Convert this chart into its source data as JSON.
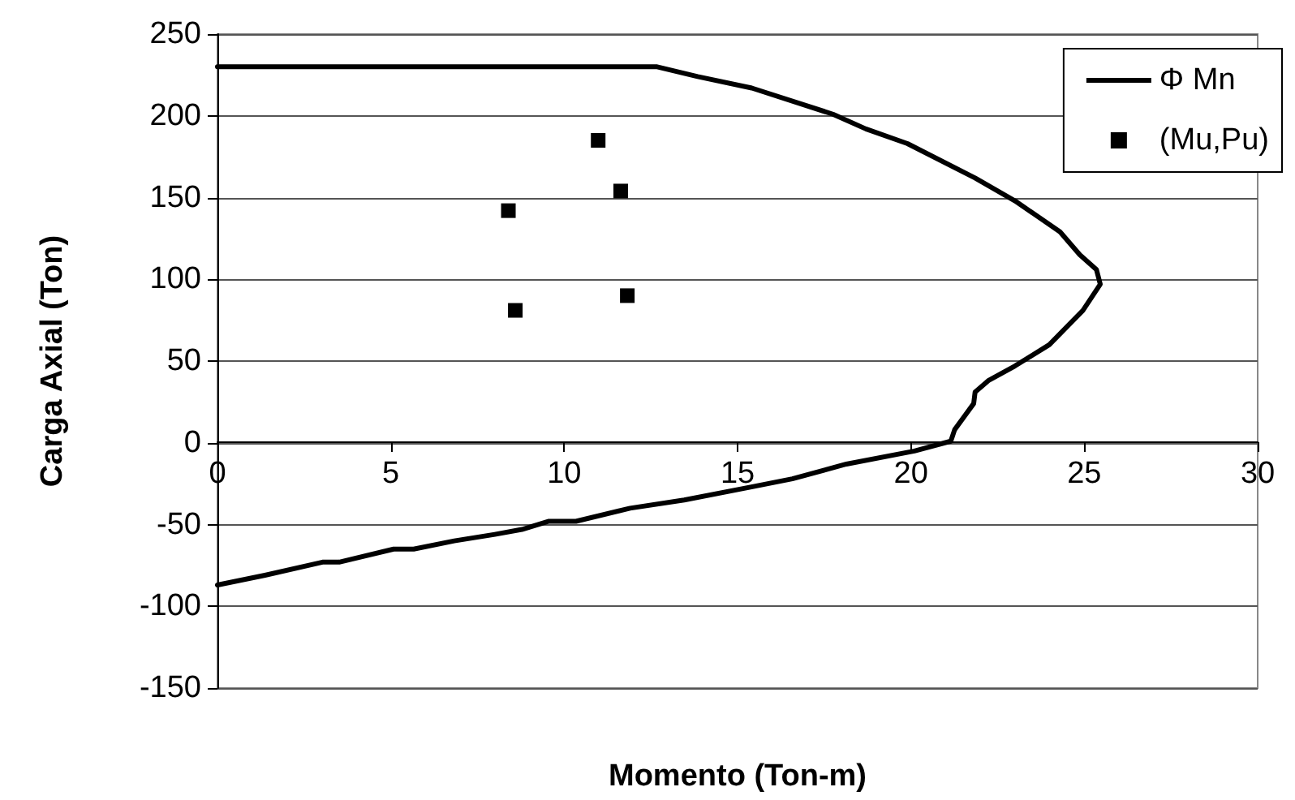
{
  "chart_data": {
    "type": "line",
    "xlabel": "Momento (Ton-m)",
    "ylabel": "Carga Axial (Ton)",
    "xlim": [
      0,
      30
    ],
    "xticks": [
      0,
      5,
      10,
      15,
      20,
      25,
      30
    ],
    "ylim": [
      -150,
      250
    ],
    "yticks": [
      -150,
      -100,
      -50,
      0,
      50,
      100,
      150,
      200,
      250
    ],
    "grid": "y",
    "legend": "top right",
    "series": [
      {
        "name": "Φ Mn",
        "type": "line",
        "color": "#000000",
        "marker": "none",
        "line_style": "solid",
        "x": [
          0,
          12.68,
          13.85,
          15.41,
          17.75,
          18.7,
          19.9,
          21.85,
          23.0,
          24.3,
          24.87,
          25.35,
          25.46,
          24.96,
          23.99,
          23.0,
          22.23,
          21.85,
          21.81,
          21.26,
          21.15,
          20.1,
          18.14,
          16.58,
          15.4,
          13.46,
          11.9,
          10.34,
          9.56,
          8.78,
          8.0,
          6.83,
          5.66,
          5.08,
          3.51,
          3.03,
          1.37,
          0
        ],
        "values": [
          230,
          230,
          224,
          217,
          201,
          192,
          183,
          162,
          148,
          129,
          115,
          106,
          97,
          81,
          60,
          47,
          38,
          31,
          24,
          8,
          1,
          -5,
          -13,
          -22,
          -27,
          -35,
          -40,
          -48,
          -48,
          -53,
          -56,
          -60,
          -65,
          -65,
          -73,
          -73,
          -81,
          -87
        ]
      },
      {
        "name": "(Mu,Pu)",
        "type": "scatter",
        "color": "#000000",
        "marker": "square",
        "x": [
          10.98,
          11.63,
          8.39,
          8.59,
          11.82
        ],
        "values": [
          185,
          154,
          142,
          81,
          90
        ]
      }
    ]
  }
}
